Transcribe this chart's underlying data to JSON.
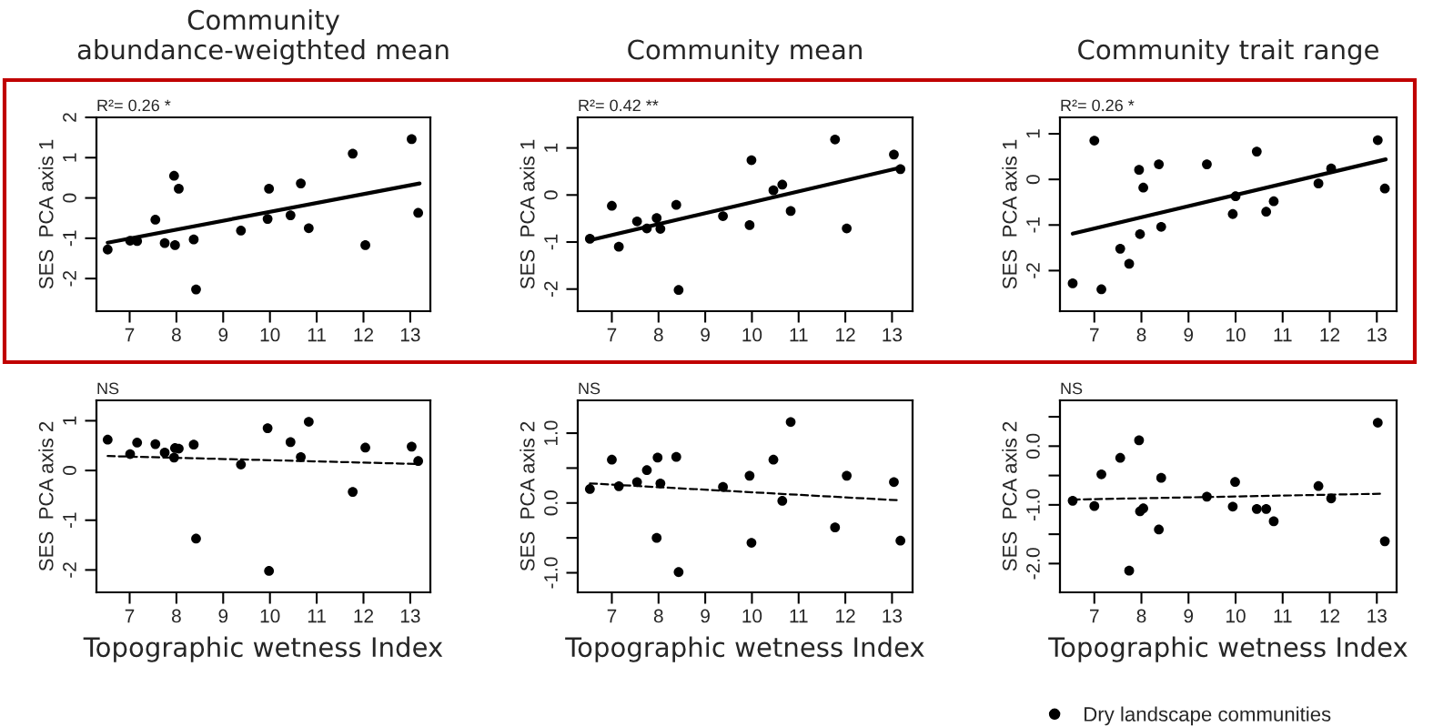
{
  "chart_data": [
    {
      "type": "scatter",
      "title": "Community\nabundance-weigthted mean",
      "ylabel": "SES  PCA axis 1",
      "annotations": [
        "R²= 0.26 *"
      ],
      "xlim": [
        6.29,
        13.43
      ],
      "ylim": [
        -2.81,
        2.0
      ],
      "xticks": [
        7,
        8,
        9,
        10,
        11,
        12,
        13
      ],
      "yticks": [
        -2,
        -1,
        0,
        1,
        2
      ],
      "grid": false,
      "series": [
        {
          "marker": "circle",
          "color": "#000000",
          "x": [
            6.53,
            7.01,
            7.16,
            7.55,
            7.75,
            7.95,
            7.97,
            8.05,
            8.37,
            8.42,
            9.38,
            9.98,
            9.95,
            10.44,
            10.66,
            10.83,
            11.77,
            12.04,
            13.03,
            13.17
          ],
          "values": [
            -1.28,
            -1.06,
            -1.07,
            -0.54,
            -1.12,
            0.55,
            -1.17,
            0.23,
            -1.03,
            -2.27,
            -0.81,
            0.23,
            -0.52,
            -0.43,
            0.36,
            -0.75,
            1.1,
            -1.17,
            1.46,
            -0.37
          ]
        },
        {
          "type": "line",
          "color": "#000000",
          "line_style": "solid",
          "x": [
            6.53,
            13.2
          ],
          "values": [
            -1.11,
            0.36
          ]
        }
      ]
    },
    {
      "type": "scatter",
      "title": "Community mean",
      "ylabel": "SES  PCA axis 1",
      "annotations": [
        "R²= 0.42 **"
      ],
      "xlim": [
        6.27,
        13.44
      ],
      "ylim": [
        -2.47,
        1.65
      ],
      "xticks": [
        7,
        8,
        9,
        10,
        11,
        12,
        13
      ],
      "yticks": [
        -2,
        -1,
        0,
        1
      ],
      "grid": false,
      "series": [
        {
          "marker": "circle",
          "color": "#000000",
          "x": [
            6.53,
            7.0,
            7.15,
            7.54,
            7.75,
            7.96,
            8.04,
            8.38,
            8.43,
            9.38,
            9.95,
            9.99,
            10.46,
            10.65,
            10.83,
            11.78,
            12.03,
            13.04,
            13.18
          ],
          "values": [
            -0.93,
            -0.23,
            -1.1,
            -0.56,
            -0.71,
            -0.49,
            -0.72,
            -0.21,
            -2.02,
            -0.45,
            -0.64,
            0.74,
            0.1,
            0.22,
            -0.34,
            1.18,
            -0.71,
            0.86,
            0.55
          ]
        },
        {
          "type": "line",
          "color": "#000000",
          "line_style": "solid",
          "x": [
            6.53,
            13.18
          ],
          "values": [
            -0.96,
            0.58
          ]
        }
      ]
    },
    {
      "type": "scatter",
      "title": "Community trait range",
      "ylabel": "SES  PCA axis 1",
      "annotations": [
        "R²= 0.26 *"
      ],
      "xlim": [
        6.27,
        13.42
      ],
      "ylim": [
        -2.89,
        1.36
      ],
      "xticks": [
        7,
        8,
        9,
        10,
        11,
        12,
        13
      ],
      "yticks": [
        -2,
        -1,
        0,
        1
      ],
      "grid": false,
      "series": [
        {
          "marker": "circle",
          "color": "#000000",
          "x": [
            6.54,
            7.0,
            7.15,
            7.55,
            7.74,
            7.95,
            7.97,
            8.04,
            8.37,
            8.42,
            9.39,
            9.94,
            10.0,
            10.45,
            10.65,
            10.81,
            11.76,
            12.03,
            13.02,
            13.17
          ],
          "values": [
            -2.28,
            0.85,
            -2.41,
            -1.52,
            -1.85,
            0.21,
            -1.2,
            -0.18,
            0.33,
            -1.04,
            0.33,
            -0.76,
            -0.37,
            0.61,
            -0.71,
            -0.48,
            -0.09,
            0.24,
            0.86,
            -0.2
          ]
        },
        {
          "type": "line",
          "color": "#000000",
          "line_style": "solid",
          "x": [
            6.54,
            13.19
          ],
          "values": [
            -1.19,
            0.44
          ]
        }
      ]
    },
    {
      "type": "scatter",
      "xlabel": "Topographic wetness Index",
      "ylabel": "SES  PCA axis 2",
      "annotations": [
        "NS"
      ],
      "xlim": [
        6.29,
        13.43
      ],
      "ylim": [
        -2.45,
        1.41
      ],
      "xticks": [
        7,
        8,
        9,
        10,
        11,
        12,
        13
      ],
      "yticks": [
        -2,
        -1,
        0,
        1
      ],
      "grid": false,
      "series": [
        {
          "marker": "circle",
          "color": "#000000",
          "x": [
            6.53,
            7.01,
            7.16,
            7.55,
            7.75,
            7.95,
            7.97,
            8.05,
            8.37,
            8.42,
            9.38,
            9.95,
            9.98,
            10.44,
            10.66,
            10.83,
            11.77,
            12.04,
            13.03,
            13.17
          ],
          "values": [
            0.62,
            0.33,
            0.56,
            0.53,
            0.36,
            0.26,
            0.45,
            0.44,
            0.52,
            -1.37,
            0.12,
            0.85,
            -2.02,
            0.57,
            0.27,
            0.98,
            -0.43,
            0.46,
            0.48,
            0.19
          ]
        },
        {
          "type": "line",
          "color": "#000000",
          "line_style": "dashed",
          "x": [
            6.53,
            13.2
          ],
          "values": [
            0.29,
            0.13
          ]
        }
      ]
    },
    {
      "type": "scatter",
      "xlabel": "Topographic wetness Index",
      "ylabel": "SES  PCA axis 2",
      "annotations": [
        "NS"
      ],
      "xlim": [
        6.27,
        13.44
      ],
      "ylim": [
        -1.28,
        1.47
      ],
      "xticks": [
        7,
        8,
        9,
        10,
        11,
        12,
        13
      ],
      "yticks": [
        {
          "value": -1.0,
          "label": "-1.0"
        },
        {
          "value": -0.5,
          "label": null
        },
        {
          "value": 0.0,
          "label": "0.0"
        },
        {
          "value": 0.5,
          "label": null
        },
        {
          "value": 1.0,
          "label": "1.0"
        }
      ],
      "grid": false,
      "series": [
        {
          "marker": "circle",
          "color": "#000000",
          "x": [
            6.53,
            7.0,
            7.15,
            7.54,
            7.75,
            7.96,
            7.98,
            8.04,
            8.38,
            8.43,
            9.38,
            9.95,
            9.99,
            10.46,
            10.65,
            10.83,
            11.78,
            12.03,
            13.04,
            13.18
          ],
          "values": [
            0.2,
            0.62,
            0.24,
            0.3,
            0.47,
            -0.5,
            0.65,
            0.28,
            0.66,
            -0.99,
            0.23,
            0.39,
            -0.57,
            0.62,
            0.03,
            1.16,
            -0.35,
            0.39,
            0.3,
            -0.54
          ]
        },
        {
          "type": "line",
          "color": "#000000",
          "line_style": "dashed",
          "x": [
            6.53,
            13.1
          ],
          "values": [
            0.28,
            0.04
          ]
        }
      ]
    },
    {
      "type": "scatter",
      "xlabel": "Topographic wetness Index",
      "ylabel": "SES  PCA axis 2",
      "annotations": [
        "NS"
      ],
      "xlim": [
        6.27,
        13.42
      ],
      "ylim": [
        -2.49,
        0.78
      ],
      "xticks": [
        7,
        8,
        9,
        10,
        11,
        12,
        13
      ],
      "yticks": [
        {
          "value": -2.0,
          "label": "-2.0"
        },
        {
          "value": -1.5,
          "label": null
        },
        {
          "value": -1.0,
          "label": "-1.0"
        },
        {
          "value": -0.5,
          "label": null
        },
        {
          "value": 0.0,
          "label": "0.0"
        },
        {
          "value": 0.5,
          "label": null
        }
      ],
      "grid": false,
      "legend": "bottom",
      "series": [
        {
          "marker": "circle",
          "name": "Dry landscape communities",
          "color": "#000000",
          "x": [
            6.54,
            7.0,
            7.15,
            7.55,
            7.74,
            7.95,
            7.97,
            8.04,
            8.37,
            8.42,
            9.39,
            9.94,
            9.99,
            10.45,
            10.65,
            10.81,
            11.76,
            12.03,
            13.02,
            13.17
          ],
          "values": [
            -0.93,
            -1.02,
            -0.48,
            -0.2,
            -2.12,
            0.1,
            -1.11,
            -1.06,
            -1.42,
            -0.54,
            -0.86,
            -1.03,
            -0.61,
            -1.07,
            -1.07,
            -1.28,
            -0.68,
            -0.89,
            0.4,
            -1.62
          ]
        },
        {
          "type": "line",
          "color": "#000000",
          "line_style": "dashed",
          "x": [
            6.54,
            13.1
          ],
          "values": [
            -0.91,
            -0.81
          ]
        }
      ]
    }
  ]
}
